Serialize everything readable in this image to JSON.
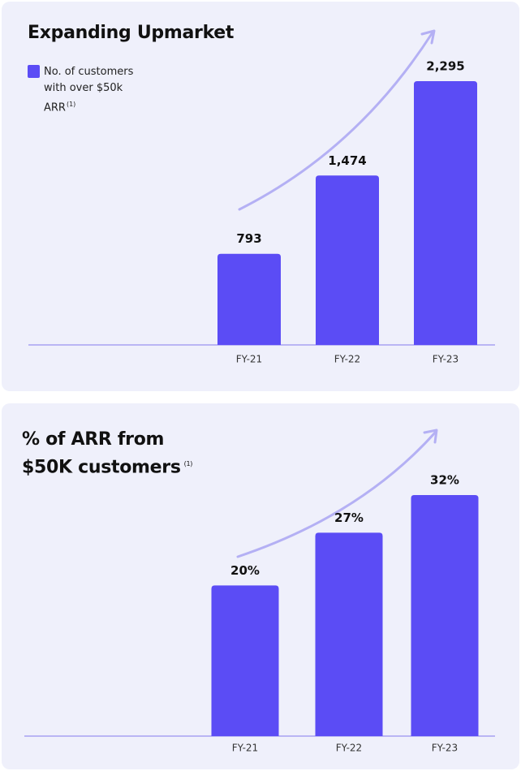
{
  "chart_data": [
    {
      "type": "bar",
      "title": "Expanding Upmarket",
      "footnote": "(1)",
      "categories": [
        "FY-21",
        "FY-22",
        "FY-23"
      ],
      "series": [
        {
          "name": "No. of customers with over $50k ARR",
          "color": "#5b4cf5",
          "values": [
            793,
            1474,
            2295
          ],
          "value_labels": [
            "793",
            "1,474",
            "2,295"
          ]
        }
      ]
    },
    {
      "type": "bar",
      "title": "% of ARR from $50K customers",
      "footnote": "(1)",
      "categories": [
        "FY-21",
        "FY-22",
        "FY-23"
      ],
      "series": [
        {
          "color": "#5b4cf5",
          "values": [
            20,
            27,
            32
          ],
          "value_labels": [
            "20%",
            "27%",
            "32%"
          ]
        }
      ]
    }
  ]
}
